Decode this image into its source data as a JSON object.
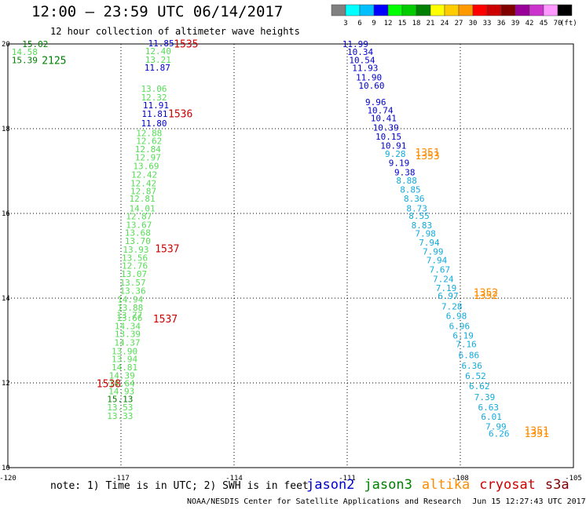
{
  "header": {
    "title": "12:00 – 23:59 UTC 06/14/2017",
    "subtitle": "12 hour collection of altimeter wave heights"
  },
  "colorbar": {
    "unit": "(ft)",
    "colors": [
      "#808080",
      "#00ffff",
      "#00bfff",
      "#0000ff",
      "#00ff00",
      "#00cc00",
      "#008000",
      "#ffff00",
      "#ffcc00",
      "#ff9900",
      "#ff0000",
      "#cc0000",
      "#800000",
      "#990099",
      "#cc33cc",
      "#ff99ff",
      "#000000"
    ],
    "labels": [
      "3",
      "6",
      "9",
      "12",
      "15",
      "18",
      "21",
      "24",
      "27",
      "30",
      "33",
      "36",
      "39",
      "42",
      "45",
      "70"
    ]
  },
  "axes": {
    "lon_min": -120,
    "lon_max": -105,
    "lat_min": 10,
    "lat_max": 20,
    "x_tick_labels": [
      {
        "lon": -120,
        "label": "-120"
      },
      {
        "lon": -117,
        "label": "-117"
      },
      {
        "lon": -114,
        "label": "-114"
      },
      {
        "lon": -111,
        "label": "-111"
      },
      {
        "lon": -108,
        "label": "-108"
      },
      {
        "lon": -105,
        "label": "-105"
      }
    ],
    "y_tick_labels": [
      {
        "lat": 20,
        "label": "20"
      },
      {
        "lat": 18,
        "label": "18"
      },
      {
        "lat": 16,
        "label": "16"
      },
      {
        "lat": 14,
        "label": "14"
      },
      {
        "lat": 12,
        "label": "12"
      },
      {
        "lat": 10,
        "label": "10"
      }
    ]
  },
  "chart_data": {
    "type": "scatter",
    "track_jason3": {
      "color_light": "#55dd55",
      "color_dark": "#008000",
      "points": [
        {
          "lon": -119.62,
          "lat": 19.93,
          "value": "15.02",
          "dark": true
        },
        {
          "lon": -119.9,
          "lat": 19.74,
          "value": "14.58"
        },
        {
          "lon": -119.9,
          "lat": 19.55,
          "value": "15.39",
          "dark": true
        },
        {
          "lon": -116.36,
          "lat": 19.76,
          "value": "12.40"
        },
        {
          "lon": -116.36,
          "lat": 19.56,
          "value": "13.21"
        },
        {
          "lon": -116.47,
          "lat": 18.87,
          "value": "13.06"
        },
        {
          "lon": -116.47,
          "lat": 18.67,
          "value": "12.32"
        },
        {
          "lon": -116.6,
          "lat": 17.82,
          "value": "12.88"
        },
        {
          "lon": -116.6,
          "lat": 17.64,
          "value": "12.62"
        },
        {
          "lon": -116.63,
          "lat": 17.44,
          "value": "12.84"
        },
        {
          "lon": -116.63,
          "lat": 17.25,
          "value": "12.97"
        },
        {
          "lon": -116.68,
          "lat": 17.05,
          "value": "13.69"
        },
        {
          "lon": -116.73,
          "lat": 16.84,
          "value": "12.42"
        },
        {
          "lon": -116.75,
          "lat": 16.64,
          "value": "12.42"
        },
        {
          "lon": -116.75,
          "lat": 16.45,
          "value": "12.87"
        },
        {
          "lon": -116.78,
          "lat": 16.28,
          "value": "12.81"
        },
        {
          "lon": -116.78,
          "lat": 16.05,
          "value": "14.01"
        },
        {
          "lon": -116.87,
          "lat": 15.86,
          "value": "12.87"
        },
        {
          "lon": -116.87,
          "lat": 15.66,
          "value": "13.67"
        },
        {
          "lon": -116.9,
          "lat": 15.47,
          "value": "13.68"
        },
        {
          "lon": -116.9,
          "lat": 15.28,
          "value": "13.70"
        },
        {
          "lon": -116.95,
          "lat": 15.07,
          "value": "13.93"
        },
        {
          "lon": -116.98,
          "lat": 14.88,
          "value": "13.56"
        },
        {
          "lon": -116.98,
          "lat": 14.69,
          "value": "12.76"
        },
        {
          "lon": -117.0,
          "lat": 14.5,
          "value": "13.07"
        },
        {
          "lon": -117.03,
          "lat": 14.3,
          "value": "13.57"
        },
        {
          "lon": -117.03,
          "lat": 14.1,
          "value": "13.36"
        },
        {
          "lon": -117.1,
          "lat": 13.9,
          "value": "14.94"
        },
        {
          "lon": -117.1,
          "lat": 13.7,
          "value": "13.88"
        },
        {
          "lon": -117.12,
          "lat": 13.53,
          "value": "13.77"
        },
        {
          "lon": -117.12,
          "lat": 13.46,
          "value": "13.66"
        },
        {
          "lon": -117.17,
          "lat": 13.27,
          "value": "14.34"
        },
        {
          "lon": -117.17,
          "lat": 13.08,
          "value": "13.39"
        },
        {
          "lon": -117.18,
          "lat": 12.88,
          "value": "14.37"
        },
        {
          "lon": -117.25,
          "lat": 12.68,
          "value": "13.90"
        },
        {
          "lon": -117.25,
          "lat": 12.49,
          "value": "13.94"
        },
        {
          "lon": -117.25,
          "lat": 12.3,
          "value": "14.81"
        },
        {
          "lon": -117.32,
          "lat": 12.1,
          "value": "14.39"
        },
        {
          "lon": -117.32,
          "lat": 11.92,
          "value": "14.64"
        },
        {
          "lon": -117.33,
          "lat": 11.73,
          "value": "14.93"
        },
        {
          "lon": -117.37,
          "lat": 11.55,
          "value": "15.13",
          "dark": true
        },
        {
          "lon": -117.37,
          "lat": 11.35,
          "value": "13.53"
        },
        {
          "lon": -117.37,
          "lat": 11.15,
          "value": "13.33"
        }
      ]
    },
    "track_jason2": {
      "color_dark": "#0000cc",
      "color_light": "#11aadd",
      "points": [
        {
          "lon": -116.28,
          "lat": 19.94,
          "value": "11.85"
        },
        {
          "lon": -116.38,
          "lat": 19.37,
          "value": "11.87"
        },
        {
          "lon": -116.42,
          "lat": 18.48,
          "value": "11.91"
        },
        {
          "lon": -116.45,
          "lat": 18.28,
          "value": "11.81"
        },
        {
          "lon": -116.47,
          "lat": 18.06,
          "value": "11.80"
        },
        {
          "lon": -111.13,
          "lat": 19.93,
          "value": "11.99"
        },
        {
          "lon": -111.0,
          "lat": 19.74,
          "value": "10.34"
        },
        {
          "lon": -110.95,
          "lat": 19.55,
          "value": "10.54"
        },
        {
          "lon": -110.87,
          "lat": 19.36,
          "value": "11.93"
        },
        {
          "lon": -110.77,
          "lat": 19.14,
          "value": "11.90"
        },
        {
          "lon": -110.7,
          "lat": 18.94,
          "value": "10.60"
        },
        {
          "lon": -110.52,
          "lat": 18.56,
          "value": "9.96"
        },
        {
          "lon": -110.47,
          "lat": 18.36,
          "value": "10.74"
        },
        {
          "lon": -110.38,
          "lat": 18.18,
          "value": "10.41"
        },
        {
          "lon": -110.32,
          "lat": 17.95,
          "value": "10.39"
        },
        {
          "lon": -110.25,
          "lat": 17.74,
          "value": "10.15"
        },
        {
          "lon": -110.12,
          "lat": 17.53,
          "value": "10.91"
        },
        {
          "lon": -110.0,
          "lat": 17.33,
          "value": "9.28",
          "light": true
        },
        {
          "lon": -109.9,
          "lat": 17.12,
          "value": "9.19"
        },
        {
          "lon": -109.75,
          "lat": 16.9,
          "value": "9.38"
        },
        {
          "lon": -109.7,
          "lat": 16.7,
          "value": "8.88",
          "light": true
        },
        {
          "lon": -109.6,
          "lat": 16.49,
          "value": "8.85",
          "light": true
        },
        {
          "lon": -109.5,
          "lat": 16.28,
          "value": "8.36",
          "light": true
        },
        {
          "lon": -109.43,
          "lat": 16.05,
          "value": "8.73",
          "light": true
        },
        {
          "lon": -109.37,
          "lat": 15.87,
          "value": "8.55",
          "light": true
        },
        {
          "lon": -109.3,
          "lat": 15.65,
          "value": "8.83",
          "light": true
        },
        {
          "lon": -109.2,
          "lat": 15.45,
          "value": "7.98",
          "light": true
        },
        {
          "lon": -109.1,
          "lat": 15.24,
          "value": "7.94",
          "light": true
        },
        {
          "lon": -109.0,
          "lat": 15.03,
          "value": "7.99",
          "light": true
        },
        {
          "lon": -108.9,
          "lat": 14.82,
          "value": "7.94",
          "light": true
        },
        {
          "lon": -108.82,
          "lat": 14.6,
          "value": "7.67",
          "light": true
        },
        {
          "lon": -108.73,
          "lat": 14.38,
          "value": "7.24",
          "light": true
        },
        {
          "lon": -108.65,
          "lat": 14.17,
          "value": "7.19",
          "light": true
        },
        {
          "lon": -108.6,
          "lat": 13.98,
          "value": "6.97",
          "light": true
        },
        {
          "lon": -108.5,
          "lat": 13.73,
          "value": "7.28",
          "light": true
        },
        {
          "lon": -108.38,
          "lat": 13.51,
          "value": "6.98",
          "light": true
        },
        {
          "lon": -108.3,
          "lat": 13.27,
          "value": "6.96",
          "light": true
        },
        {
          "lon": -108.2,
          "lat": 13.05,
          "value": "6.19",
          "light": true
        },
        {
          "lon": -108.12,
          "lat": 12.84,
          "value": "7.16",
          "light": true
        },
        {
          "lon": -108.05,
          "lat": 12.58,
          "value": "6.86",
          "light": true
        },
        {
          "lon": -107.97,
          "lat": 12.33,
          "value": "6.36",
          "light": true
        },
        {
          "lon": -107.87,
          "lat": 12.09,
          "value": "6.52",
          "light": true
        },
        {
          "lon": -107.77,
          "lat": 11.85,
          "value": "6.62",
          "light": true
        },
        {
          "lon": -107.63,
          "lat": 11.59,
          "value": "7.39",
          "light": true
        },
        {
          "lon": -107.53,
          "lat": 11.35,
          "value": "6.63",
          "light": true
        },
        {
          "lon": -107.45,
          "lat": 11.13,
          "value": "6.01",
          "light": true
        },
        {
          "lon": -107.33,
          "lat": 10.9,
          "value": "7.99",
          "light": true
        },
        {
          "lon": -107.25,
          "lat": 10.73,
          "value": "6.26",
          "light": true
        }
      ]
    },
    "time_labels": [
      {
        "lon": -115.6,
        "lat": 19.92,
        "text": "1535",
        "color": "#cc0000"
      },
      {
        "lon": -115.75,
        "lat": 18.27,
        "text": "1536",
        "color": "#cc0000"
      },
      {
        "lon": -116.1,
        "lat": 15.08,
        "text": "1537",
        "color": "#cc0000"
      },
      {
        "lon": -116.15,
        "lat": 13.43,
        "text": "1537",
        "color": "#cc0000"
      },
      {
        "lon": -117.65,
        "lat": 11.9,
        "text": "1538",
        "color": "#cc0000"
      },
      {
        "lon": -119.1,
        "lat": 19.53,
        "text": "2125",
        "color": "#008000"
      },
      {
        "lon": -109.2,
        "lat": 17.35,
        "text": "1351",
        "color": "#ff8c00"
      },
      {
        "lon": -109.2,
        "lat": 17.28,
        "text": "1353",
        "color": "#ff8c00"
      },
      {
        "lon": -107.65,
        "lat": 14.05,
        "text": "1352",
        "color": "#ff8c00"
      },
      {
        "lon": -107.65,
        "lat": 13.98,
        "text": "1352",
        "color": "#ff8c00"
      },
      {
        "lon": -106.3,
        "lat": 10.79,
        "text": "1351",
        "color": "#ff8c00"
      },
      {
        "lon": -106.3,
        "lat": 10.72,
        "text": "1351",
        "color": "#ff8c00"
      }
    ]
  },
  "footer": {
    "note": "note: 1) Time is in UTC; 2) SWH is in feet",
    "legend": [
      {
        "name": "jason2",
        "color": "#0000cc"
      },
      {
        "name": "jason3",
        "color": "#008000"
      },
      {
        "name": "altika",
        "color": "#ff8c00"
      },
      {
        "name": "cryosat",
        "color": "#cc0000"
      },
      {
        "name": "s3a",
        "color": "#800000"
      }
    ],
    "credit": "NOAA/NESDIS Center for Satellite Applications and Research",
    "credit_date": "Jun 15 12:27:43 UTC 2017"
  }
}
